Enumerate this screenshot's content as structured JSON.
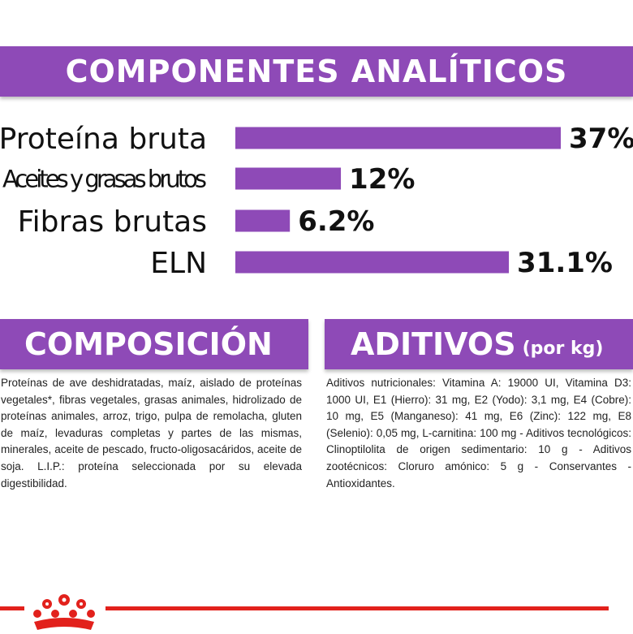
{
  "header": {
    "title": "COMPONENTES ANALÍTICOS"
  },
  "chart_data": {
    "type": "bar",
    "orientation": "horizontal",
    "title": "COMPONENTES ANALÍTICOS",
    "categories": [
      "Proteína bruta",
      "Aceites y grasas brutos",
      "Fibras brutas",
      "ELN"
    ],
    "values": [
      37,
      12,
      6.2,
      31.1
    ],
    "value_labels": [
      "37%",
      "12%",
      "6.2%",
      "31.1%"
    ],
    "xlim": [
      0,
      37
    ],
    "grid": false,
    "legend": "none",
    "bar_color": "#8e4ab7"
  },
  "composicion": {
    "title": "COMPOSICIÓN",
    "text": "Proteínas de ave deshidratadas, maíz, aislado de proteínas vegetales*, fibras vegetales, grasas animales, hidrolizado de proteínas animales, arroz, trigo, pulpa de remolacha, gluten de maíz, levaduras completas y partes de las mismas, minerales, aceite de pescado, fructo-oligosacáridos, aceite de soja. L.I.P.: proteína seleccionada por su elevada digestibilidad."
  },
  "aditivos": {
    "title": "ADITIVOS",
    "unit": "(por kg)",
    "text": "Aditivos nutricionales: Vitamina A: 19000 UI, Vitamina D3: 1000 UI, E1 (Hierro): 31 mg, E2 (Yodo): 3,1 mg, E4 (Cobre): 10 mg, E5 (Manganeso): 41 mg, E6 (Zinc): 122 mg, E8 (Selenio): 0,05 mg, L-carnitina: 100 mg - Aditivos tecnológicos: Clinoptilolita de origen sedimentario: 10 g - Aditivos zootécnicos: Cloruro amónico: 5 g - Conservantes - Antioxidantes."
  },
  "colors": {
    "accent": "#8e4ab7",
    "brand_red": "#e2211c"
  },
  "logo": {
    "icon": "royal-canin-crown-icon"
  }
}
